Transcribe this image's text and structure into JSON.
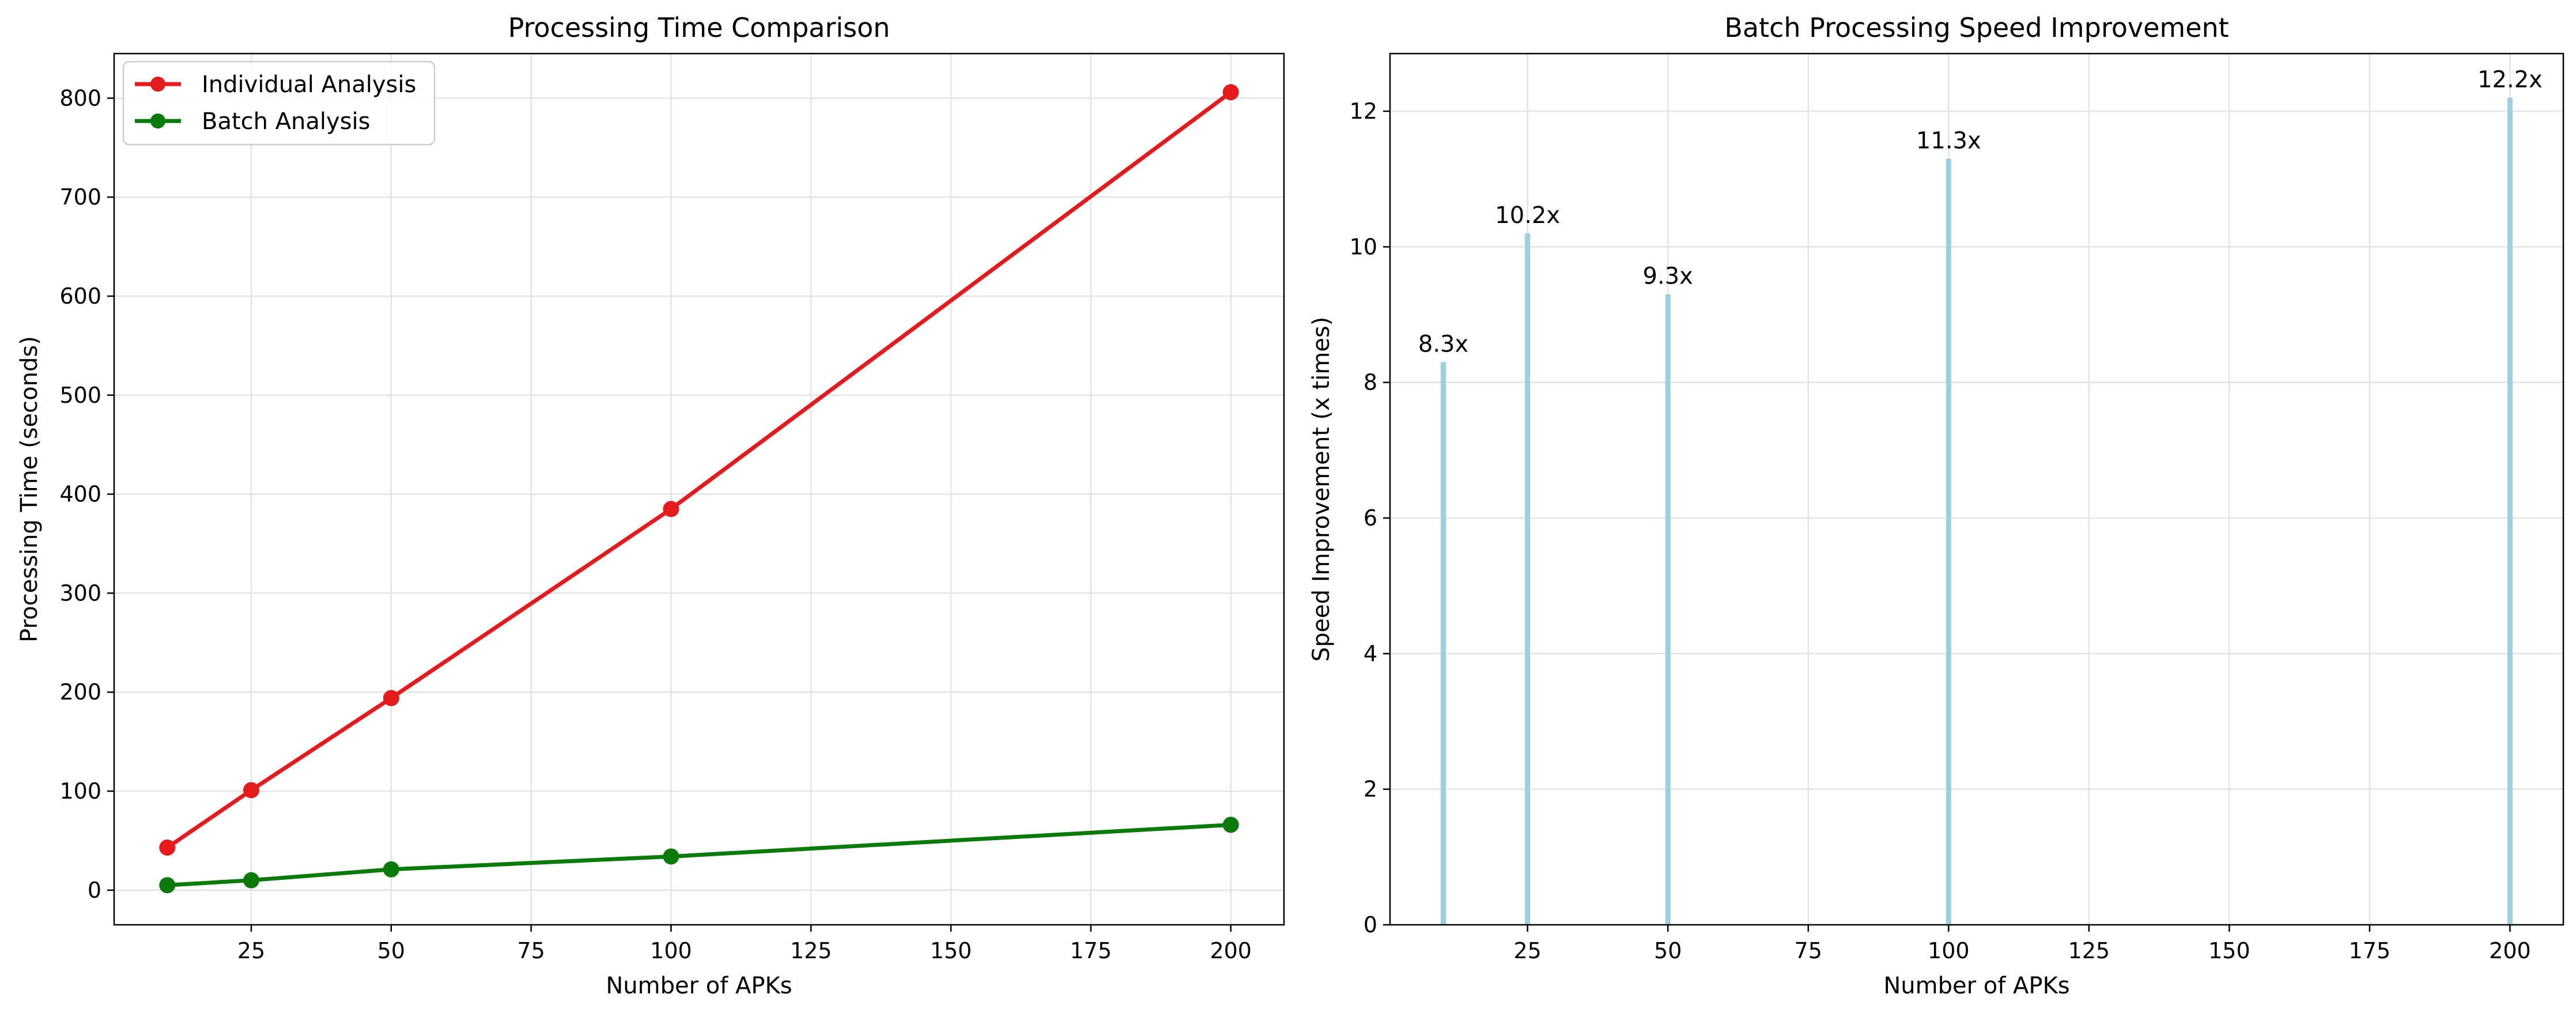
{
  "chart_data": [
    {
      "type": "line",
      "title": "Processing Time Comparison",
      "xlabel": "Number of APKs",
      "ylabel": "Processing Time (seconds)",
      "xlim": [
        0.5,
        209.5
      ],
      "ylim": [
        -35,
        845
      ],
      "xticks": [
        25,
        50,
        75,
        100,
        125,
        150,
        175,
        200
      ],
      "yticks": [
        0,
        100,
        200,
        300,
        400,
        500,
        600,
        700,
        800
      ],
      "grid": true,
      "legend_position": "top-left",
      "x": [
        10,
        25,
        50,
        100,
        200
      ],
      "series": [
        {
          "name": "Individual Analysis",
          "color": "#e41a1c",
          "values": [
            43,
            101,
            194,
            385,
            806
          ]
        },
        {
          "name": "Batch Analysis",
          "color": "#0a7a0a",
          "values": [
            5,
            10,
            21,
            34,
            66
          ]
        }
      ]
    },
    {
      "type": "bar",
      "title": "Batch Processing Speed Improvement",
      "xlabel": "Number of APKs",
      "ylabel": "Speed Improvement (x times)",
      "xlim": [
        0.5,
        209.5
      ],
      "ylim": [
        0,
        12.85
      ],
      "xticks": [
        25,
        50,
        75,
        100,
        125,
        150,
        175,
        200
      ],
      "yticks": [
        0,
        2,
        4,
        6,
        8,
        10,
        12
      ],
      "grid": true,
      "color": "#9ccfdf",
      "x": [
        10,
        25,
        50,
        100,
        200
      ],
      "values": [
        8.3,
        10.2,
        9.3,
        11.3,
        12.2
      ],
      "data_labels": [
        "8.3x",
        "10.2x",
        "9.3x",
        "11.3x",
        "12.2x"
      ]
    }
  ]
}
